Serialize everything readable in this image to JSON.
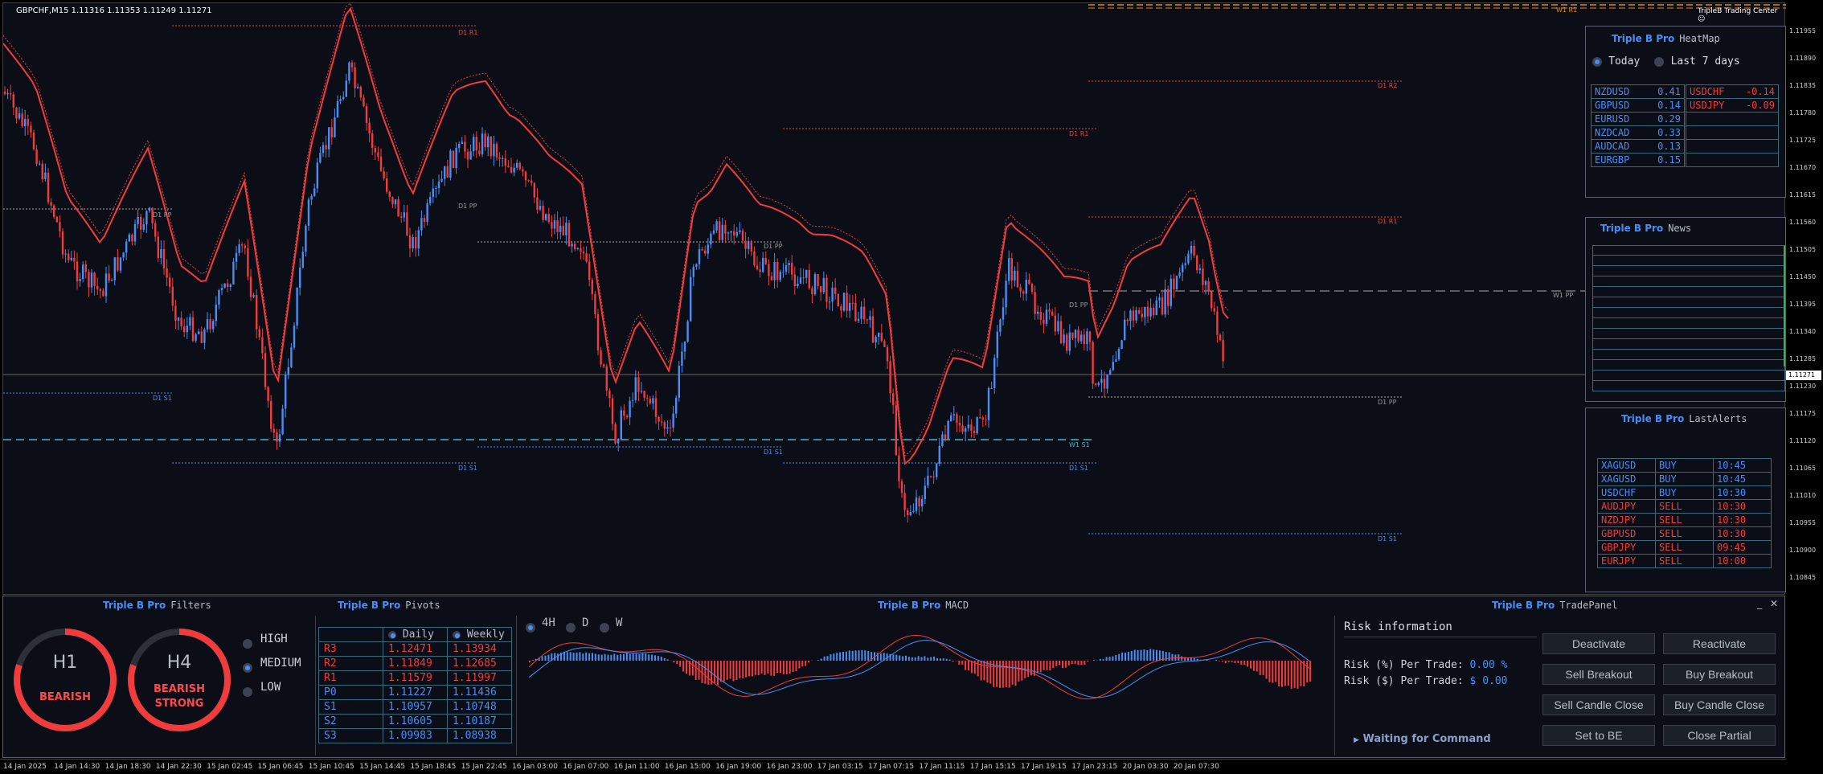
{
  "symbol_info": "GBPCHF,M15  1.11316 1.11353 1.11249 1.11271",
  "brand_top": "TripleB Trading Center",
  "current_price": "1.11271",
  "price_ticks": [
    "1.11955",
    "1.11890",
    "1.11835",
    "1.11780",
    "1.11725",
    "1.11670",
    "1.11615",
    "1.11560",
    "1.11505",
    "1.11450",
    "1.11395",
    "1.11340",
    "1.11285",
    "1.11230",
    "1.11175",
    "1.11120",
    "1.11065",
    "1.11010",
    "1.10955",
    "1.10900",
    "1.10845"
  ],
  "time_ticks": [
    "14 Jan 2025",
    "14 Jan 14:30",
    "14 Jan 18:30",
    "14 Jan 22:30",
    "15 Jan 02:45",
    "15 Jan 06:45",
    "15 Jan 10:45",
    "15 Jan 14:45",
    "15 Jan 18:45",
    "15 Jan 22:45",
    "16 Jan 03:00",
    "16 Jan 07:00",
    "16 Jan 11:00",
    "16 Jan 15:00",
    "16 Jan 19:00",
    "16 Jan 23:00",
    "17 Jan 03:15",
    "17 Jan 07:15",
    "17 Jan 11:15",
    "17 Jan 15:15",
    "17 Jan 19:15",
    "17 Jan 23:15",
    "20 Jan 03:30",
    "20 Jan 07:30"
  ],
  "levels": {
    "w1_r1": "W1 R1",
    "d1_r1": "D1 R1",
    "d1_r2": "D1 R2",
    "d1_pp": "D1 PP",
    "d1_s1": "D1 S1",
    "w1_pp": "W1 PP",
    "w1_s1": "W1 S1"
  },
  "heatmap": {
    "brand": "Triple B Pro",
    "title": "HeatMap",
    "opt_today": "Today",
    "opt_7days": "Last 7 days",
    "left_rows": [
      {
        "pair": "NZDUSD",
        "val": "0.41"
      },
      {
        "pair": "GBPUSD",
        "val": "0.14"
      },
      {
        "pair": "EURUSD",
        "val": "0.29"
      },
      {
        "pair": "NZDCAD",
        "val": "0.33"
      },
      {
        "pair": "AUDCAD",
        "val": "0.13"
      },
      {
        "pair": "EURGBP",
        "val": "0.15"
      }
    ],
    "right_rows": [
      {
        "pair": "USDCHF",
        "val": "-0.14"
      },
      {
        "pair": "USDJPY",
        "val": "-0.09"
      }
    ]
  },
  "news": {
    "brand": "Triple B Pro",
    "title": "News"
  },
  "alerts": {
    "brand": "Triple B Pro",
    "title": "LastAlerts",
    "rows": [
      {
        "sym": "XAGUSD",
        "side": "BUY",
        "time": "10:45"
      },
      {
        "sym": "XAGUSD",
        "side": "BUY",
        "time": "10:45"
      },
      {
        "sym": "USDCHF",
        "side": "BUY",
        "time": "10:30"
      },
      {
        "sym": "AUDJPY",
        "side": "SELL",
        "time": "10:30"
      },
      {
        "sym": "NZDJPY",
        "side": "SELL",
        "time": "10:30"
      },
      {
        "sym": "GBPUSD",
        "side": "SELL",
        "time": "10:30"
      },
      {
        "sym": "GBPJPY",
        "side": "SELL",
        "time": "09:45"
      },
      {
        "sym": "EURJPY",
        "side": "SELL",
        "time": "10:00"
      }
    ]
  },
  "filters": {
    "brand": "Triple B Pro",
    "title": "Filters",
    "h1_label": "H1",
    "h1_state": "BEARISH",
    "h1_fill": 0.8,
    "h4_label": "H4",
    "h4_state_1": "BEARISH",
    "h4_state_2": "STRONG",
    "h4_fill": 0.8,
    "opt_high": "HIGH",
    "opt_medium": "MEDIUM",
    "opt_low": "LOW"
  },
  "pivots": {
    "brand": "Triple B Pro",
    "title": "Pivots",
    "col_daily": "Daily",
    "col_weekly": "Weekly",
    "rows": [
      {
        "lbl": "R3",
        "d": "1.12471",
        "w": "1.13934"
      },
      {
        "lbl": "R2",
        "d": "1.11849",
        "w": "1.12685"
      },
      {
        "lbl": "R1",
        "d": "1.11579",
        "w": "1.11997"
      },
      {
        "lbl": "P0",
        "d": "1.11227",
        "w": "1.11436"
      },
      {
        "lbl": "S1",
        "d": "1.10957",
        "w": "1.10748"
      },
      {
        "lbl": "S2",
        "d": "1.10605",
        "w": "1.10187"
      },
      {
        "lbl": "S3",
        "d": "1.09983",
        "w": "1.08938"
      }
    ]
  },
  "macd": {
    "brand": "Triple B Pro",
    "title": "MACD",
    "tf_4h": "4H",
    "tf_d": "D",
    "tf_w": "W"
  },
  "trade": {
    "brand": "Triple B Pro",
    "title": "TradePanel",
    "risk_title": "Risk information",
    "risk_pct_label": "Risk (%) Per Trade:",
    "risk_pct_val": "0.00 %",
    "risk_usd_label": "Risk ($) Per Trade:",
    "risk_usd_val": "$ 0.00",
    "status": "Waiting for Command",
    "buttons": [
      "Deactivate",
      "Reactivate",
      "Sell Breakout",
      "Buy Breakout",
      "Sell Candle Close",
      "Buy Candle Close",
      "Set to BE",
      "Close Partial"
    ]
  },
  "colors": {
    "bg": "#0b0e17",
    "bull": "#4a8ef5",
    "bear": "#f03c3c",
    "accent": "#4a8ef5"
  }
}
